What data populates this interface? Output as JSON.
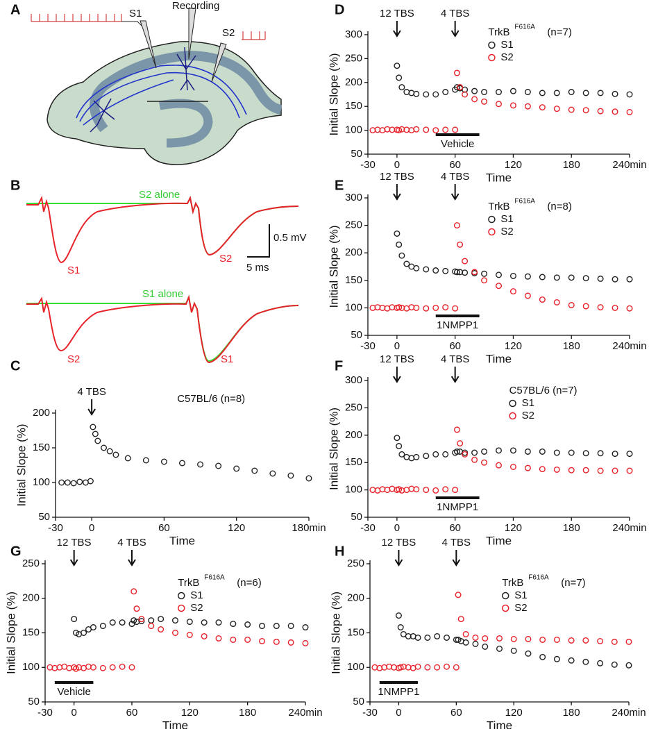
{
  "diagram_a": {
    "panel": "A",
    "labels": [
      "S1",
      "Recording",
      "S2"
    ]
  },
  "traces_b": {
    "panel": "B",
    "labels": [
      "S2 alone",
      "S1",
      "S2",
      "0.5 mV",
      "5 ms",
      "S1 alone",
      "S2",
      "S1"
    ]
  },
  "chart_data": [
    {
      "type": "scatter",
      "panel": "C",
      "ylabel": "Initial Slope (%)",
      "xlabel": "Time",
      "xlim": [
        -30,
        180
      ],
      "xticks": [
        -30,
        0,
        60,
        120,
        {
          "value": 180,
          "label": "180min"
        }
      ],
      "ylim": [
        50,
        200
      ],
      "yticks": [
        50,
        100,
        150,
        200
      ],
      "legend_title": "C57BL/6 (n=8)",
      "color": "#222222",
      "annotations": [
        {
          "text": "4 TBS",
          "x": 0
        }
      ],
      "x": [
        -25,
        -20,
        -15,
        -10,
        -5,
        -1,
        1,
        3,
        5,
        10,
        15,
        20,
        30,
        45,
        60,
        75,
        90,
        105,
        120,
        135,
        150,
        165,
        180
      ],
      "values": [
        100,
        100,
        99,
        101,
        100,
        102,
        180,
        170,
        160,
        150,
        145,
        140,
        135,
        132,
        130,
        128,
        126,
        124,
        120,
        117,
        113,
        110,
        106
      ]
    },
    {
      "type": "scatter",
      "panel": "D",
      "ylabel": "Initial Slope (%)",
      "xlabel": "Time",
      "xlim": [
        -30,
        240
      ],
      "xticks": [
        -30,
        0,
        60,
        120,
        180,
        {
          "value": 240,
          "label": "240min"
        }
      ],
      "ylim": [
        50,
        300
      ],
      "yticks": [
        50,
        100,
        150,
        200,
        250,
        300
      ],
      "legend_title": "TrkB",
      "legend_title_sup": "F616A",
      "legend_note": "(n=7)",
      "annotations": [
        {
          "text": "12 TBS",
          "x": 0
        },
        {
          "text": "4 TBS",
          "x": 60
        }
      ],
      "drug_bar": {
        "label": "Vehicle",
        "x": [
          40,
          85
        ]
      },
      "x": [
        -25,
        -20,
        -15,
        -10,
        -5,
        0,
        2,
        5,
        10,
        15,
        20,
        30,
        40,
        50,
        60,
        62,
        65,
        70,
        80,
        90,
        105,
        120,
        135,
        150,
        165,
        180,
        195,
        210,
        225,
        240
      ],
      "series": [
        {
          "name": "S1",
          "color": "#222222",
          "values": [
            null,
            null,
            null,
            null,
            null,
            235,
            210,
            190,
            180,
            178,
            176,
            175,
            175,
            180,
            185,
            190,
            188,
            185,
            182,
            180,
            180,
            182,
            180,
            178,
            178,
            180,
            178,
            178,
            176,
            175
          ]
        },
        {
          "name": "S2",
          "color": "#e8222a",
          "values": [
            100,
            101,
            100,
            102,
            101,
            101,
            100,
            102,
            101,
            100,
            102,
            101,
            100,
            101,
            101,
            220,
            190,
            175,
            165,
            160,
            155,
            152,
            150,
            148,
            145,
            143,
            142,
            140,
            139,
            138
          ]
        }
      ]
    },
    {
      "type": "scatter",
      "panel": "E",
      "ylabel": "Initial Slope (%)",
      "xlabel": "Time",
      "xlim": [
        -30,
        240
      ],
      "xticks": [
        -30,
        0,
        60,
        120,
        180,
        {
          "value": 240,
          "label": "240min"
        }
      ],
      "ylim": [
        50,
        300
      ],
      "yticks": [
        50,
        100,
        150,
        200,
        250,
        300
      ],
      "legend_title": "TrkB",
      "legend_title_sup": "F616A",
      "legend_note": "(n=8)",
      "annotations": [
        {
          "text": "12 TBS",
          "x": 0
        },
        {
          "text": "4 TBS",
          "x": 60
        }
      ],
      "drug_bar": {
        "label": "1NMPP1",
        "x": [
          40,
          85
        ]
      },
      "x": [
        -25,
        -20,
        -15,
        -10,
        -5,
        0,
        2,
        5,
        10,
        15,
        20,
        30,
        40,
        50,
        60,
        62,
        65,
        70,
        80,
        90,
        105,
        120,
        135,
        150,
        165,
        180,
        195,
        210,
        225,
        240
      ],
      "series": [
        {
          "name": "S1",
          "color": "#222222",
          "values": [
            null,
            null,
            null,
            null,
            null,
            235,
            215,
            195,
            180,
            175,
            172,
            170,
            168,
            167,
            166,
            165,
            165,
            164,
            163,
            162,
            160,
            158,
            157,
            156,
            155,
            155,
            154,
            153,
            152,
            152
          ]
        },
        {
          "name": "S2",
          "color": "#e8222a",
          "values": [
            100,
            101,
            100,
            99,
            101,
            100,
            101,
            100,
            99,
            101,
            100,
            99,
            100,
            101,
            99,
            250,
            215,
            185,
            165,
            150,
            140,
            130,
            122,
            115,
            110,
            105,
            103,
            101,
            100,
            99
          ]
        }
      ]
    },
    {
      "type": "scatter",
      "panel": "F",
      "ylabel": "Initial Slope (%)",
      "xlabel": "Time",
      "xlim": [
        -30,
        240
      ],
      "xticks": [
        -30,
        0,
        60,
        120,
        180,
        {
          "value": 240,
          "label": "240min"
        }
      ],
      "ylim": [
        50,
        300
      ],
      "yticks": [
        50,
        100,
        150,
        200,
        250,
        300
      ],
      "legend_title": "C57BL/6 (n=7)",
      "annotations": [
        {
          "text": "12 TBS",
          "x": 0
        },
        {
          "text": "4 TBS",
          "x": 60
        }
      ],
      "drug_bar": {
        "label": "1NMPP1",
        "x": [
          40,
          85
        ]
      },
      "x": [
        -25,
        -20,
        -15,
        -10,
        -5,
        0,
        2,
        5,
        10,
        15,
        20,
        30,
        40,
        50,
        60,
        62,
        65,
        70,
        80,
        90,
        105,
        120,
        135,
        150,
        165,
        180,
        195,
        210,
        225,
        240
      ],
      "series": [
        {
          "name": "S1",
          "color": "#222222",
          "values": [
            null,
            null,
            null,
            null,
            null,
            195,
            180,
            165,
            160,
            158,
            160,
            162,
            165,
            165,
            168,
            170,
            170,
            168,
            168,
            170,
            172,
            172,
            170,
            170,
            168,
            168,
            167,
            167,
            166,
            166
          ]
        },
        {
          "name": "S2",
          "color": "#e8222a",
          "values": [
            100,
            99,
            101,
            100,
            102,
            100,
            101,
            99,
            100,
            102,
            101,
            100,
            99,
            101,
            100,
            210,
            185,
            165,
            155,
            150,
            145,
            142,
            140,
            138,
            137,
            136,
            136,
            135,
            135,
            135
          ]
        }
      ]
    },
    {
      "type": "scatter",
      "panel": "G",
      "ylabel": "Initial Slope (%)",
      "xlabel": "Time",
      "xlim": [
        -30,
        240
      ],
      "xticks": [
        -30,
        0,
        60,
        120,
        180,
        {
          "value": 240,
          "label": "240min"
        }
      ],
      "ylim": [
        50,
        250
      ],
      "yticks": [
        50,
        100,
        150,
        200,
        250
      ],
      "legend_title": "TrkB",
      "legend_title_sup": "F616A",
      "legend_note": "(n=6)",
      "annotations": [
        {
          "text": "12 TBS",
          "x": 0
        },
        {
          "text": "4 TBS",
          "x": 60
        }
      ],
      "drug_bar": {
        "label": "Vehicle",
        "x": [
          -20,
          20
        ]
      },
      "x": [
        -25,
        -20,
        -15,
        -10,
        -5,
        0,
        2,
        5,
        10,
        15,
        20,
        30,
        40,
        50,
        60,
        62,
        65,
        70,
        80,
        90,
        105,
        120,
        135,
        150,
        165,
        180,
        195,
        210,
        225,
        240
      ],
      "series": [
        {
          "name": "S1",
          "color": "#222222",
          "values": [
            null,
            null,
            null,
            null,
            null,
            170,
            150,
            148,
            150,
            155,
            158,
            160,
            165,
            165,
            163,
            168,
            166,
            167,
            168,
            170,
            168,
            166,
            165,
            165,
            163,
            162,
            160,
            160,
            160,
            158
          ]
        },
        {
          "name": "S2",
          "color": "#e8222a",
          "values": [
            100,
            99,
            100,
            101,
            99,
            100,
            98,
            100,
            99,
            101,
            100,
            99,
            100,
            101,
            100,
            210,
            185,
            170,
            160,
            155,
            150,
            147,
            145,
            142,
            140,
            140,
            138,
            137,
            136,
            135
          ]
        }
      ]
    },
    {
      "type": "scatter",
      "panel": "H",
      "ylabel": "Initial Slope (%)",
      "xlabel": "Time",
      "xlim": [
        -30,
        240
      ],
      "xticks": [
        -30,
        0,
        60,
        120,
        180,
        {
          "value": 240,
          "label": "240min"
        }
      ],
      "ylim": [
        50,
        250
      ],
      "yticks": [
        50,
        100,
        150,
        200,
        250
      ],
      "legend_title": "TrkB",
      "legend_title_sup": "F616A",
      "legend_note": "(n=7)",
      "annotations": [
        {
          "text": "12 TBS",
          "x": 0
        },
        {
          "text": "4 TBS",
          "x": 60
        }
      ],
      "drug_bar": {
        "label": "1NMPP1",
        "x": [
          -20,
          20
        ]
      },
      "x": [
        -25,
        -20,
        -15,
        -10,
        -5,
        0,
        2,
        5,
        10,
        15,
        20,
        30,
        40,
        50,
        60,
        62,
        65,
        70,
        80,
        90,
        105,
        120,
        135,
        150,
        165,
        180,
        195,
        210,
        225,
        240
      ],
      "series": [
        {
          "name": "S1",
          "color": "#222222",
          "values": [
            null,
            null,
            null,
            null,
            null,
            175,
            158,
            148,
            145,
            145,
            143,
            143,
            145,
            143,
            140,
            140,
            138,
            136,
            134,
            130,
            127,
            124,
            120,
            115,
            112,
            110,
            108,
            106,
            104,
            103
          ]
        },
        {
          "name": "S2",
          "color": "#e8222a",
          "values": [
            100,
            99,
            100,
            101,
            100,
            99,
            100,
            101,
            100,
            99,
            101,
            100,
            100,
            101,
            100,
            205,
            170,
            148,
            143,
            142,
            142,
            141,
            141,
            140,
            140,
            139,
            139,
            138,
            137,
            137
          ]
        }
      ]
    }
  ]
}
